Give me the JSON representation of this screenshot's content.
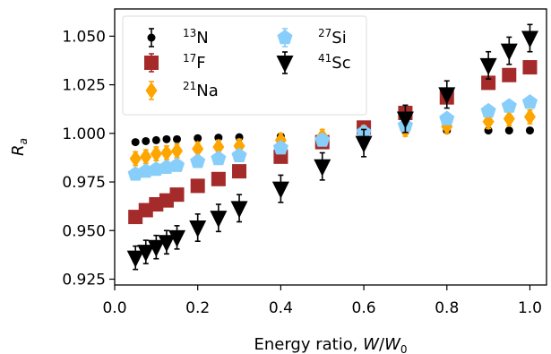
{
  "chart_data": {
    "type": "scatter",
    "xlabel_prefix": "Energy ratio, ",
    "xlabel_var": "W",
    "xlabel_sep": "/",
    "xlabel_var2": "W",
    "xlabel_sub2": "0",
    "ylabel_var": "R",
    "ylabel_sub": "a",
    "xlim": [
      0.0,
      1.04
    ],
    "ylim": [
      0.922,
      1.064
    ],
    "xticks": [
      "0.0",
      "0.2",
      "0.4",
      "0.6",
      "0.8",
      "1.0"
    ],
    "xtick_values": [
      0.0,
      0.2,
      0.4,
      0.6,
      0.8,
      1.0
    ],
    "yticks": [
      "0.925",
      "0.950",
      "0.975",
      "1.000",
      "1.025",
      "1.050"
    ],
    "ytick_values": [
      0.925,
      0.95,
      0.975,
      1.0,
      1.025,
      1.05
    ],
    "grid": false,
    "legend_position": "upper-left",
    "legend_columns": 2,
    "x": [
      0.05,
      0.075,
      0.1,
      0.125,
      0.15,
      0.2,
      0.25,
      0.3,
      0.4,
      0.5,
      0.6,
      0.7,
      0.8,
      0.9,
      0.95,
      1.0
    ],
    "series": [
      {
        "mass": "13",
        "element": "N",
        "marker": "circle",
        "color": "#000000",
        "y": [
          0.9955,
          0.996,
          0.9965,
          0.997,
          0.997,
          0.9975,
          0.9978,
          0.998,
          0.9985,
          0.999,
          1.0,
          1.001,
          1.0015,
          1.0015,
          1.0015,
          1.0015
        ],
        "err": [
          0.0012,
          0.0012,
          0.0012,
          0.0012,
          0.0012,
          0.0012,
          0.0012,
          0.0012,
          0.0012,
          0.0012,
          0.0012,
          0.0012,
          0.0012,
          0.0012,
          0.0012,
          0.0012
        ]
      },
      {
        "mass": "17",
        "element": "F",
        "marker": "square",
        "color": "#a52a2a",
        "y": [
          0.957,
          0.9605,
          0.9635,
          0.9655,
          0.9685,
          0.973,
          0.9765,
          0.9805,
          0.988,
          0.9955,
          1.003,
          1.0105,
          1.0185,
          1.026,
          1.03,
          1.034
        ],
        "err": [
          0.0015,
          0.0015,
          0.0015,
          0.0015,
          0.0015,
          0.0015,
          0.0015,
          0.0015,
          0.0015,
          0.0015,
          0.0015,
          0.0015,
          0.0015,
          0.0015,
          0.0015,
          0.0015
        ]
      },
      {
        "mass": "21",
        "element": "Na",
        "marker": "diamond",
        "color": "#ffa500",
        "y": [
          0.987,
          0.988,
          0.9895,
          0.99,
          0.991,
          0.992,
          0.993,
          0.9935,
          0.9965,
          0.9985,
          1.0005,
          1.002,
          1.0035,
          1.006,
          1.0075,
          1.0085
        ],
        "err": [
          0.0035,
          0.0035,
          0.0035,
          0.0035,
          0.0035,
          0.0035,
          0.0035,
          0.0035,
          0.0035,
          0.0035,
          0.0035,
          0.0035,
          0.0035,
          0.0035,
          0.0035,
          0.0035
        ]
      },
      {
        "mass": "27",
        "element": "Si",
        "marker": "pentagon",
        "color": "#87cefa",
        "y": [
          0.979,
          0.9805,
          0.9815,
          0.9825,
          0.9835,
          0.9855,
          0.987,
          0.9885,
          0.9925,
          0.9965,
          1.0005,
          1.004,
          1.0075,
          1.0115,
          1.014,
          1.016
        ],
        "err": [
          0.001,
          0.001,
          0.001,
          0.001,
          0.001,
          0.001,
          0.001,
          0.001,
          0.001,
          0.001,
          0.001,
          0.001,
          0.001,
          0.001,
          0.001,
          0.001
        ]
      },
      {
        "mass": "41",
        "element": "Sc",
        "marker": "triangle-down",
        "color": "#000000",
        "y": [
          0.936,
          0.939,
          0.9415,
          0.944,
          0.9465,
          0.9515,
          0.9565,
          0.9615,
          0.9715,
          0.983,
          0.995,
          1.0075,
          1.02,
          1.035,
          1.0425,
          1.049
        ],
        "err": [
          0.006,
          0.006,
          0.006,
          0.006,
          0.006,
          0.007,
          0.007,
          0.007,
          0.007,
          0.007,
          0.007,
          0.007,
          0.007,
          0.007,
          0.007,
          0.007
        ]
      }
    ]
  }
}
